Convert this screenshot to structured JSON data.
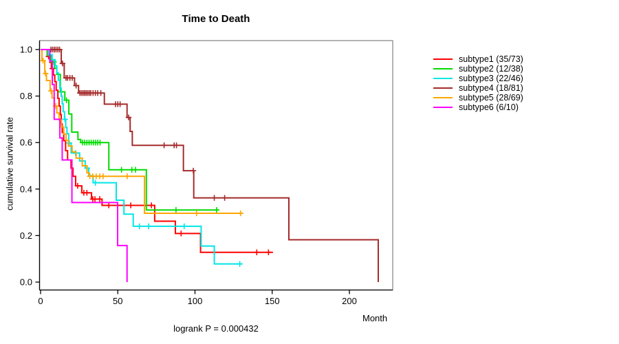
{
  "title": "Time to Death",
  "footer": "logrank P = 0.000432",
  "axes": {
    "x_label": "Month",
    "y_label": "cumulative survival rate"
  },
  "chart_data": {
    "type": "line",
    "style": "kaplan-meier-step",
    "title": "Time to Death",
    "xlabel": "Month",
    "ylabel": "cumulative survival rate",
    "annotation": "logrank P = 0.000432",
    "xlim": [
      0,
      228
    ],
    "ylim": [
      0,
      1
    ],
    "x_ticks": [
      0,
      50,
      100,
      150,
      200
    ],
    "y_ticks": [
      "1.0",
      "0.8",
      "0.6",
      "0.4",
      "0.2",
      "0.0"
    ],
    "grid": false,
    "legend_position": "right-outside",
    "censor_marker": "plus",
    "series": [
      {
        "name": "subtype1",
        "label": "subtype1 (35/73)",
        "color": "#ff0000",
        "steps": [
          [
            0,
            1.0
          ],
          [
            4.3,
            0.97
          ],
          [
            6,
            0.945
          ],
          [
            7,
            0.918
          ],
          [
            8.3,
            0.89
          ],
          [
            9.2,
            0.862
          ],
          [
            10.1,
            0.825
          ],
          [
            11.2,
            0.79
          ],
          [
            12,
            0.757
          ],
          [
            12.8,
            0.72
          ],
          [
            13.4,
            0.68
          ],
          [
            14,
            0.643
          ],
          [
            15,
            0.608
          ],
          [
            16.2,
            0.565
          ],
          [
            17.5,
            0.525
          ],
          [
            19.7,
            0.49
          ],
          [
            21,
            0.455
          ],
          [
            22.7,
            0.414
          ],
          [
            26.7,
            0.384
          ],
          [
            33,
            0.357
          ],
          [
            39.8,
            0.33
          ],
          [
            73.9,
            0.262
          ],
          [
            87.3,
            0.209
          ],
          [
            103.6,
            0.128
          ]
        ],
        "end": 150.5,
        "censors": [
          5.2,
          7.7,
          24,
          28,
          30,
          33.8,
          35.2,
          38.3,
          44.2,
          58.4,
          71.8,
          91,
          140,
          147.6
        ]
      },
      {
        "name": "subtype2",
        "label": "subtype2 (12/38)",
        "color": "#00dc00",
        "steps": [
          [
            0,
            1.0
          ],
          [
            4.5,
            0.974
          ],
          [
            6.8,
            0.947
          ],
          [
            9,
            0.92
          ],
          [
            10.5,
            0.893
          ],
          [
            12.8,
            0.818
          ],
          [
            15.7,
            0.782
          ],
          [
            18.3,
            0.723
          ],
          [
            20.2,
            0.645
          ],
          [
            24.2,
            0.613
          ],
          [
            26,
            0.6
          ],
          [
            44.2,
            0.483
          ],
          [
            68.5,
            0.31
          ]
        ],
        "end": 115,
        "censors": [
          8.6,
          13.5,
          16.8,
          27.2,
          28.6,
          30,
          31.4,
          32.8,
          34.2,
          35.6,
          37,
          38.5,
          52.4,
          59.1,
          61.5,
          87.7,
          114
        ]
      },
      {
        "name": "subtype3",
        "label": "subtype3 (22/46)",
        "color": "#00e6e6",
        "steps": [
          [
            0,
            1.0
          ],
          [
            5,
            0.978
          ],
          [
            7.5,
            0.956
          ],
          [
            9.5,
            0.93
          ],
          [
            10.5,
            0.9
          ],
          [
            11.5,
            0.868
          ],
          [
            12.5,
            0.835
          ],
          [
            13.3,
            0.8
          ],
          [
            14,
            0.767
          ],
          [
            14.6,
            0.733
          ],
          [
            15.5,
            0.7
          ],
          [
            16.3,
            0.665
          ],
          [
            17.1,
            0.638
          ],
          [
            18.2,
            0.598
          ],
          [
            19.8,
            0.555
          ],
          [
            25.3,
            0.521
          ],
          [
            28.9,
            0.49
          ],
          [
            31.2,
            0.457
          ],
          [
            34,
            0.427
          ],
          [
            49,
            0.352
          ],
          [
            54,
            0.292
          ],
          [
            60,
            0.24
          ],
          [
            104,
            0.155
          ],
          [
            112.5,
            0.078
          ]
        ],
        "end": 130.5,
        "censors": [
          15.8,
          18.6,
          22.6,
          27,
          30.2,
          35.5,
          64,
          70,
          93,
          129
        ]
      },
      {
        "name": "subtype4",
        "label": "subtype4 (18/81)",
        "color": "#a52a2a",
        "steps": [
          [
            0,
            1.0
          ],
          [
            13.4,
            0.94
          ],
          [
            15.3,
            0.878
          ],
          [
            22,
            0.845
          ],
          [
            24.6,
            0.813
          ],
          [
            41.3,
            0.765
          ],
          [
            56,
            0.708
          ],
          [
            58,
            0.648
          ],
          [
            59.4,
            0.588
          ],
          [
            92.5,
            0.479
          ],
          [
            99.2,
            0.362
          ],
          [
            160.8,
            0.182
          ],
          [
            218.7,
            0.0
          ]
        ],
        "end": 218.7,
        "censors": [
          6.7,
          7.8,
          8.9,
          10,
          11.2,
          12.3,
          14.2,
          16.5,
          17.5,
          19,
          20.5,
          23,
          25.5,
          26.5,
          27.5,
          28.5,
          29.5,
          30.5,
          31.5,
          32.5,
          34,
          35.5,
          37,
          39,
          48.5,
          50,
          51.5,
          57,
          80,
          86.5,
          88,
          98.9,
          112.5,
          119.2
        ]
      },
      {
        "name": "subtype5",
        "label": "subtype5 (28/69)",
        "color": "#ffa500",
        "steps": [
          [
            0,
            1.0
          ],
          [
            0.9,
            0.952
          ],
          [
            2.7,
            0.897
          ],
          [
            3.8,
            0.867
          ],
          [
            6.2,
            0.822
          ],
          [
            7.4,
            0.792
          ],
          [
            9,
            0.757
          ],
          [
            10.5,
            0.727
          ],
          [
            12,
            0.697
          ],
          [
            13.5,
            0.667
          ],
          [
            15,
            0.637
          ],
          [
            16.5,
            0.61
          ],
          [
            18,
            0.585
          ],
          [
            20.4,
            0.56
          ],
          [
            23,
            0.533
          ],
          [
            27,
            0.5
          ],
          [
            30,
            0.47
          ],
          [
            31.5,
            0.455
          ],
          [
            67.3,
            0.296
          ]
        ],
        "end": 130.6,
        "censors": [
          1.6,
          3.2,
          6.8,
          9.8,
          31.9,
          33.8,
          36,
          38.3,
          40.5,
          56.1,
          101,
          129.5
        ]
      },
      {
        "name": "subtype6",
        "label": "subtype6 (6/10)",
        "color": "#ff00ff",
        "steps": [
          [
            0,
            1.0
          ],
          [
            6,
            0.95
          ],
          [
            7.6,
            0.85
          ],
          [
            8.8,
            0.7
          ],
          [
            12.5,
            0.62
          ],
          [
            14,
            0.525
          ],
          [
            20.3,
            0.342
          ],
          [
            49.9,
            0.157
          ],
          [
            56,
            0.0
          ]
        ],
        "end": 56,
        "censors": []
      }
    ]
  }
}
